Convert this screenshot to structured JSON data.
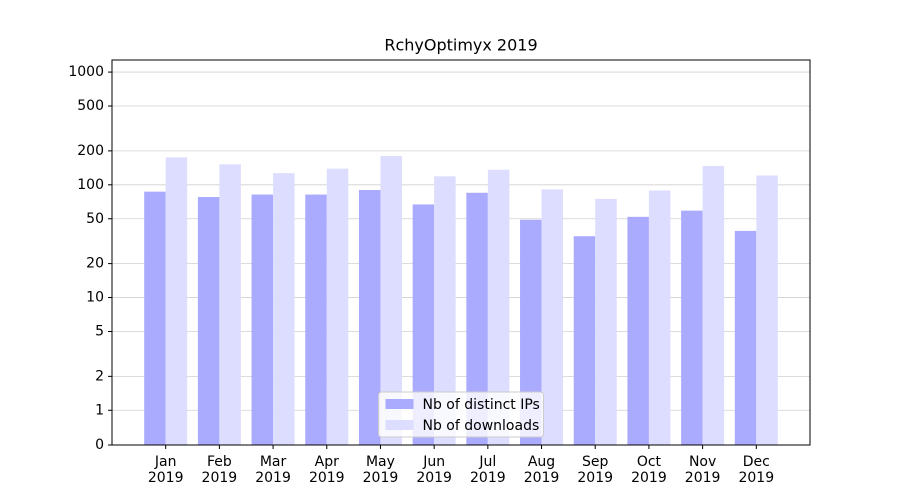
{
  "chart_data": {
    "type": "bar",
    "title": "RchyOptimyx 2019",
    "categories": [
      "Jan\n2019",
      "Feb\n2019",
      "Mar\n2019",
      "Apr\n2019",
      "May\n2019",
      "Jun\n2019",
      "Jul\n2019",
      "Aug\n2019",
      "Sep\n2019",
      "Oct\n2019",
      "Nov\n2019",
      "Dec\n2019"
    ],
    "series": [
      {
        "name": "Nb of distinct IPs",
        "color": "#aaaaff",
        "values": [
          87,
          78,
          82,
          82,
          90,
          67,
          85,
          49,
          35,
          52,
          59,
          39
        ]
      },
      {
        "name": "Nb of downloads",
        "color": "#ddddff",
        "values": [
          175,
          152,
          127,
          139,
          180,
          119,
          136,
          91,
          75,
          89,
          147,
          121
        ]
      }
    ],
    "yscale": "symlog",
    "linthresh": 1,
    "ylim": [
      0,
      1280
    ],
    "yticks": [
      0,
      1,
      2,
      5,
      10,
      20,
      50,
      100,
      200,
      500,
      1000
    ],
    "grid": true,
    "legend": "lower center"
  }
}
